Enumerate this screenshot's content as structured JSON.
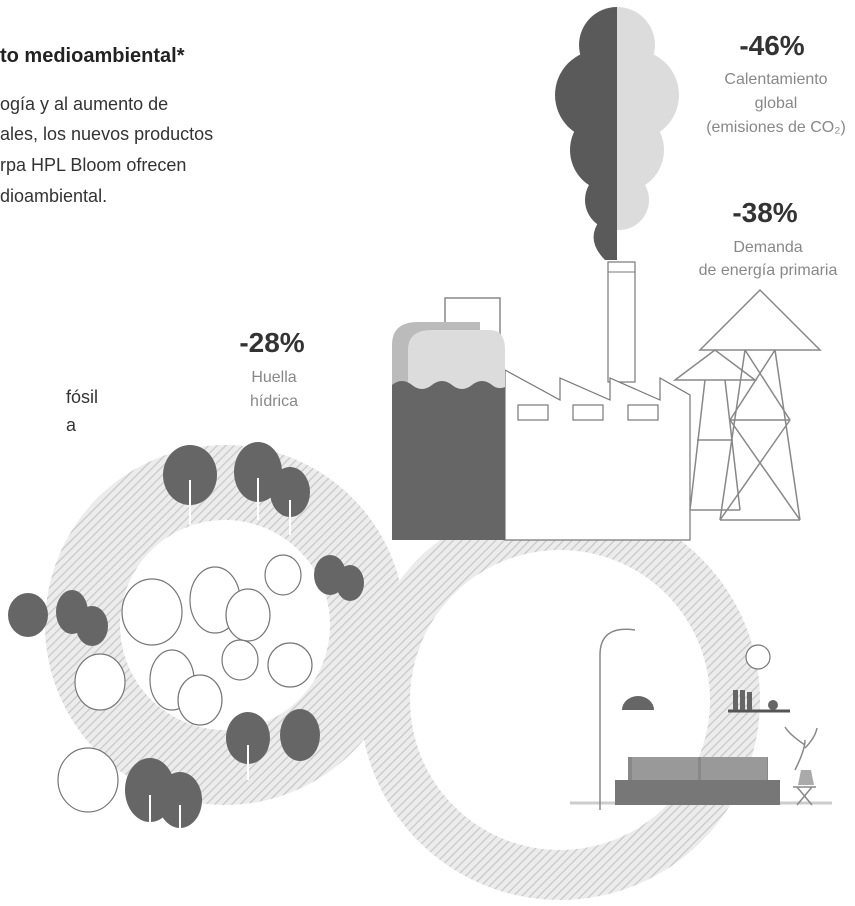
{
  "header": {
    "title": "to medioambiental*"
  },
  "intro": {
    "lines": [
      "ogía y al aumento de",
      "ales, los nuevos productos",
      "rpa HPL Bloom ofrecen",
      "dioambiental."
    ]
  },
  "stats": [
    {
      "value": "-46%",
      "label_lines": [
        "Calentamiento",
        "global",
        "(emisiones de CO₂)"
      ]
    },
    {
      "value": "-38%",
      "label_lines": [
        "Demanda",
        "de energía primaria"
      ]
    },
    {
      "value": "-28%",
      "label_lines": [
        "Huella",
        "hídrica"
      ]
    }
  ],
  "side_text": {
    "lines": [
      "fósil",
      "a"
    ]
  }
}
